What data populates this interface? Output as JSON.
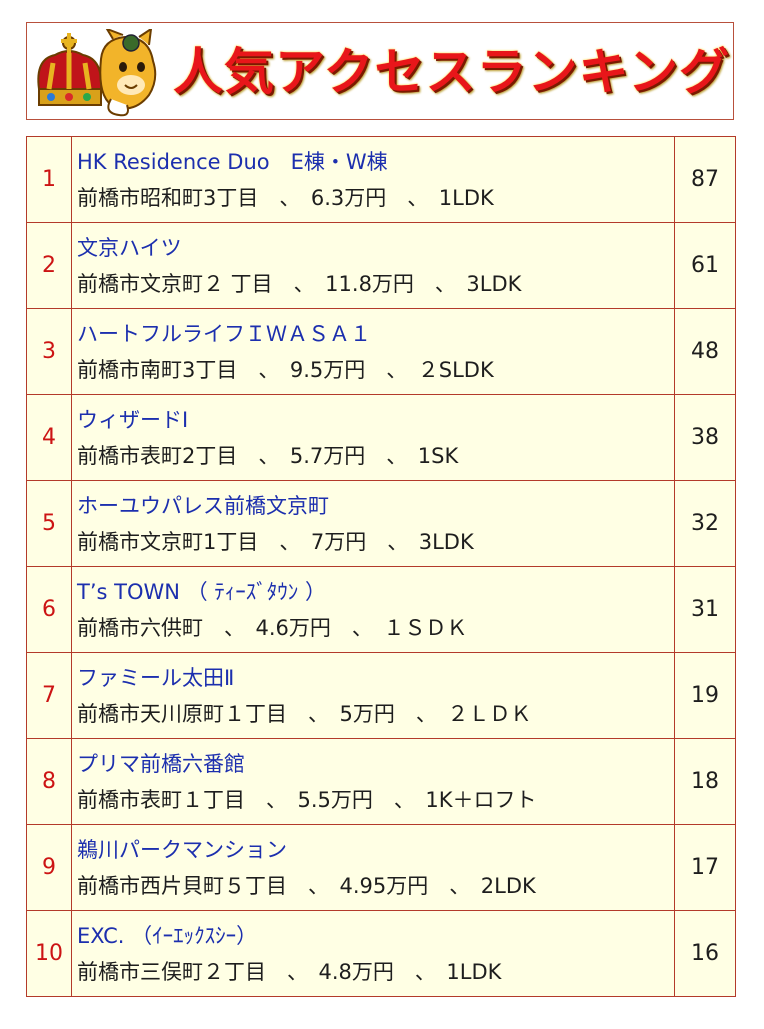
{
  "banner": {
    "title": "人気アクセスランキング",
    "mascot_icon": "crown-mascot-icon"
  },
  "colors": {
    "border": "#b33a2a",
    "rank": "#cc1414",
    "name": "#1c2fae",
    "cell_bg": "#ffffe4",
    "title": "#e8161a"
  },
  "ranking": [
    {
      "rank": "1",
      "name": "HK Residence Duo　E棟・W棟",
      "detail": "前橋市昭和町3丁目　、　6.3万円　、　1LDK",
      "count": "87"
    },
    {
      "rank": "2",
      "name": "文京ハイツ",
      "detail": "前橋市文京町２ 丁目　、　11.8万円　、　3LDK",
      "count": "61"
    },
    {
      "rank": "3",
      "name": "ハートフルライフＩＷＡＳＡ１",
      "detail": "前橋市南町3丁目　、　9.5万円　、　２SLDK",
      "count": "48"
    },
    {
      "rank": "4",
      "name": "ウィザードⅠ",
      "detail": "前橋市表町2丁目　、　5.7万円　、　1SK",
      "count": "38"
    },
    {
      "rank": "5",
      "name": "ホーユウパレス前橋文京町",
      "detail": "前橋市文京町1丁目　、　7万円　、　3LDK",
      "count": "32"
    },
    {
      "rank": "6",
      "name": "T’s TOWN （ ﾃｨｰｽﾞﾀｳﾝ ）",
      "detail": "前橋市六供町　、　4.6万円　、　１ＳＤＫ",
      "count": "31"
    },
    {
      "rank": "7",
      "name": "ファミール太田Ⅱ",
      "detail": "前橋市天川原町１丁目　、　5万円　、　２ＬＤＫ",
      "count": "19"
    },
    {
      "rank": "8",
      "name": "プリマ前橋六番館",
      "detail": "前橋市表町１丁目　、　5.5万円　、　1K＋ロフト",
      "count": "18"
    },
    {
      "rank": "9",
      "name": "鵜川パークマンション",
      "detail": "前橋市西片貝町５丁目　、　4.95万円　、　2LDK",
      "count": "17"
    },
    {
      "rank": "10",
      "name": "EXC. （ｲｰｴｯｸｽｼｰ）",
      "detail": "前橋市三俣町２丁目　、　4.8万円　、　1LDK",
      "count": "16"
    }
  ]
}
